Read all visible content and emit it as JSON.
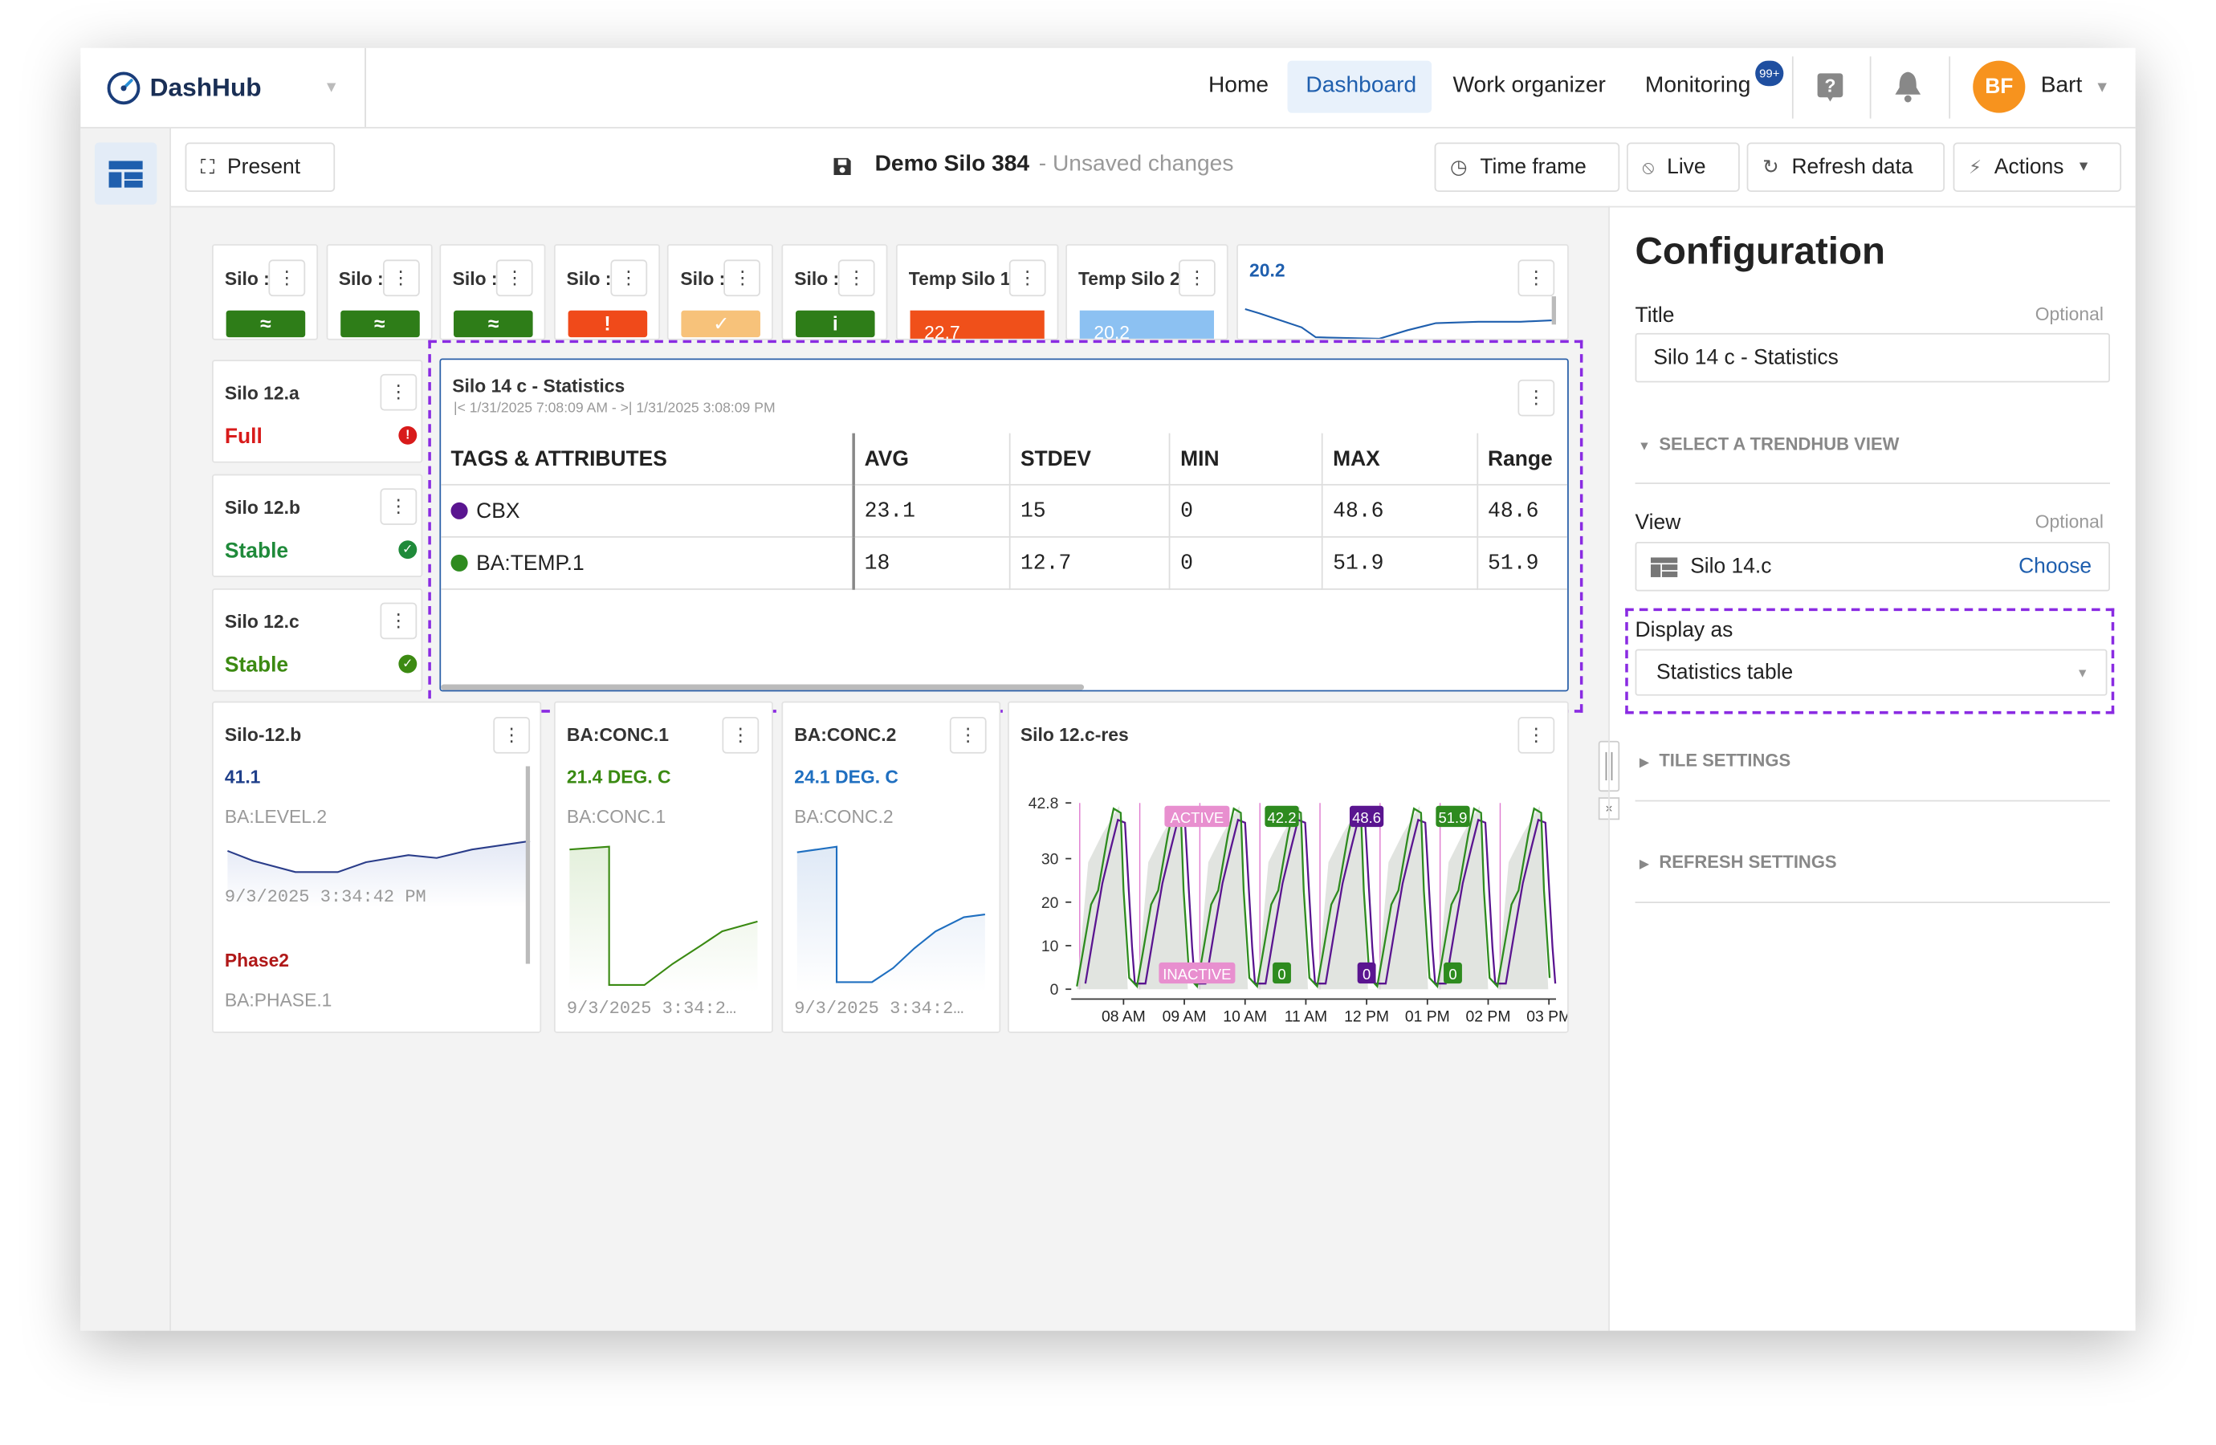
{
  "header": {
    "logo": "DashHub",
    "nav": [
      "Home",
      "Dashboard",
      "Work organizer",
      "Monitoring"
    ],
    "badge": "99+",
    "avatar": "BF",
    "user": "Bart"
  },
  "toolbar": {
    "present": "Present",
    "title": "Demo Silo 384",
    "status": "- Unsaved changes",
    "time_frame": "Time frame",
    "live": "Live",
    "refresh": "Refresh data",
    "actions": "Actions"
  },
  "tiles": {
    "top_row": [
      {
        "title": "Silo :",
        "color": "#2e7d18"
      },
      {
        "title": "Silo :",
        "color": "#2e7d18"
      },
      {
        "title": "Silo :",
        "color": "#2e7d18"
      },
      {
        "title": "Silo :",
        "color": "#f04a1a"
      },
      {
        "title": "Silo :",
        "color": "#f7c27a"
      },
      {
        "title": "Silo :",
        "color": "#2e7d18"
      }
    ],
    "temp1": {
      "title": "Temp Silo 1",
      "value": "22.7",
      "color": "#f0501a"
    },
    "temp2": {
      "title": "Temp Silo 2",
      "value": "20.2",
      "color": "#8cc1f2"
    },
    "spark": {
      "value": "20.2"
    },
    "status": [
      {
        "title": "Silo 12.a",
        "state": "Full",
        "color": "#d81b1b"
      },
      {
        "title": "Silo 12.b",
        "state": "Stable",
        "color": "#1f8a3a"
      },
      {
        "title": "Silo 12.c",
        "state": "Stable",
        "color": "#3c8a12"
      }
    ],
    "stats": {
      "title": "Silo 14 c - Statistics",
      "range": "|< 1/31/2025 7:08:09 AM - >| 1/31/2025 3:08:09 PM",
      "columns": [
        "TAGS & ATTRIBUTES",
        "AVG",
        "STDEV",
        "MIN",
        "MAX",
        "Range"
      ],
      "rows": [
        {
          "name": "CBX",
          "color": "#5a1590",
          "values": [
            23.1,
            15,
            0,
            48.6,
            48.6
          ]
        },
        {
          "name": "BA:TEMP.1",
          "color": "#2e8b1f",
          "values": [
            18,
            12.7,
            0,
            51.9,
            51.9
          ]
        }
      ]
    },
    "level": {
      "title": "Silo-12.b",
      "value": "41.1",
      "tag": "BA:LEVEL.2",
      "time": "9/3/2025 3:34:42 PM",
      "phase": "Phase2",
      "phase_tag": "BA:PHASE.1"
    },
    "conc1": {
      "title": "BA:CONC.1",
      "value": "21.4 DEG. C",
      "tag": "BA:CONC.1",
      "time": "9/3/2025 3:34:2…"
    },
    "conc2": {
      "title": "BA:CONC.2",
      "value": "24.1 DEG. C",
      "tag": "BA:CONC.2",
      "time": "9/3/2025 3:34:2…"
    },
    "trend": {
      "title": "Silo 12.c-res",
      "ylim": [
        0,
        42.8
      ],
      "yticks": [
        0,
        10,
        20,
        30,
        42.8
      ],
      "xticks": [
        "08 AM",
        "09 AM",
        "10 AM",
        "11 AM",
        "12 PM",
        "01 PM",
        "02 PM",
        "03 PM"
      ],
      "active": "ACTIVE",
      "inactive": "INACTIVE",
      "peaks": [
        {
          "value": 42.2,
          "color": "#2e8b1f"
        },
        {
          "value": 48.6,
          "color": "#5a1590"
        },
        {
          "value": 51.9,
          "color": "#2e8b1f"
        }
      ],
      "troughs": [
        {
          "value": 0,
          "color": "#2e8b1f"
        },
        {
          "value": 0,
          "color": "#5a1590"
        },
        {
          "value": 0,
          "color": "#2e8b1f"
        }
      ]
    }
  },
  "config": {
    "heading": "Configuration",
    "title_label": "Title",
    "title_optional": "Optional",
    "title_value": "Silo 14 c - Statistics",
    "trendhub": "SELECT A TRENDHUB VIEW",
    "view_label": "View",
    "view_optional": "Optional",
    "view_value": "Silo 14.c",
    "choose": "Choose",
    "display_label": "Display as",
    "display_value": "Statistics table",
    "tile_settings": "TILE SETTINGS",
    "refresh_settings": "REFRESH SETTINGS"
  }
}
